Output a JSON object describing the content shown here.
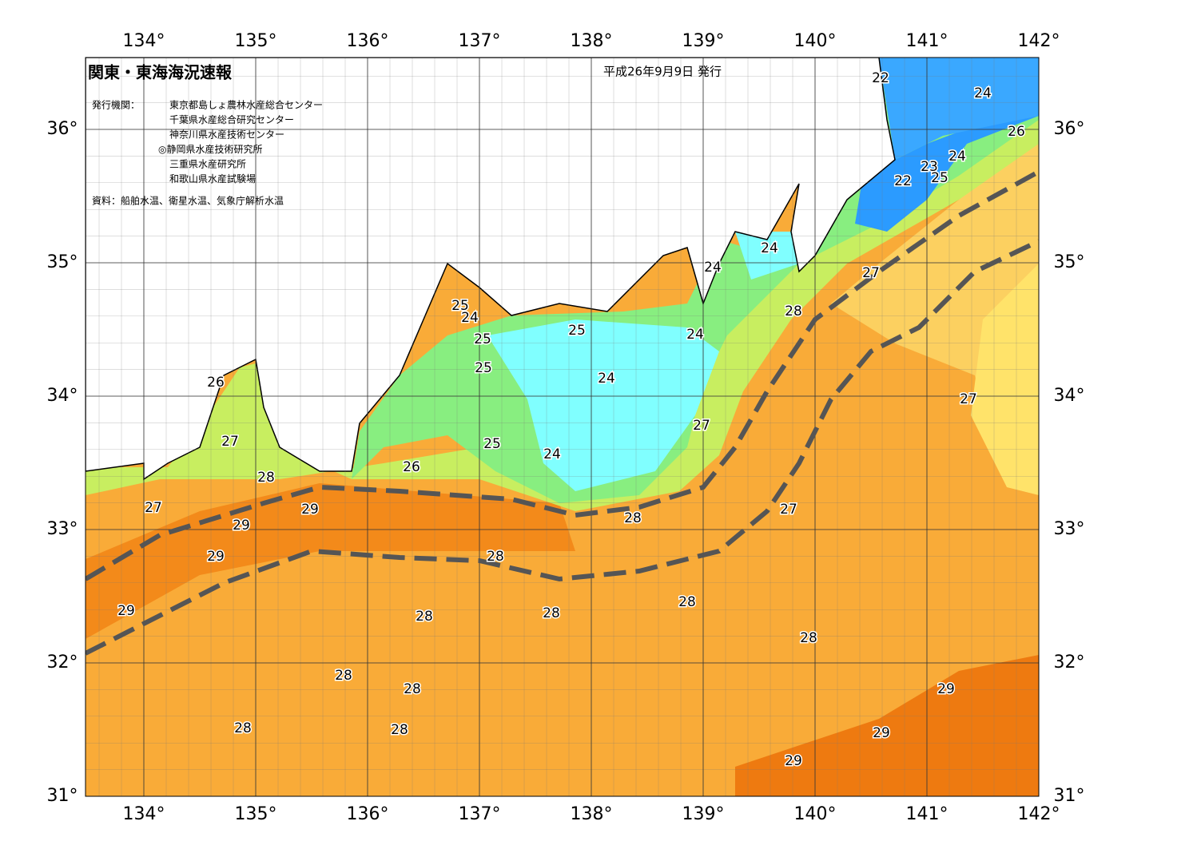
{
  "header": {
    "title": "関東・東海海況速報",
    "date": "平成26年9月9日 発行",
    "issuer_label": "発行機関：",
    "issuers": [
      "東京都島しょ農林水産総合センター",
      "千葉県水産総合研究センター",
      "神奈川県水産技術センター",
      "◎静岡県水産技術研究所",
      "三重県水産研究所",
      "和歌山県水産試験場"
    ],
    "source": "資料：船舶水温、衛星水温、気象庁解析水温"
  },
  "longitude_labels": [
    {
      "value": 134,
      "label": "134°"
    },
    {
      "value": 135,
      "label": "135°"
    },
    {
      "value": 136,
      "label": "136°"
    },
    {
      "value": 137,
      "label": "137°"
    },
    {
      "value": 138,
      "label": "138°"
    },
    {
      "value": 139,
      "label": "139°"
    },
    {
      "value": 140,
      "label": "140°"
    },
    {
      "value": 141,
      "label": "141°"
    },
    {
      "value": 142,
      "label": "142°"
    }
  ],
  "latitude_labels": [
    {
      "value": 31,
      "label": "31°"
    },
    {
      "value": 32,
      "label": "32°"
    },
    {
      "value": 33,
      "label": "33°"
    },
    {
      "value": 34,
      "label": "34°"
    },
    {
      "value": 35,
      "label": "35°"
    },
    {
      "value": 36,
      "label": "36°"
    }
  ],
  "contour_labels": [
    22,
    24,
    26,
    24,
    23,
    25,
    22,
    24,
    24,
    27,
    28,
    25,
    24,
    25,
    25,
    24,
    25,
    24,
    26,
    27,
    27,
    27,
    25,
    24,
    26,
    28,
    27,
    29,
    27,
    28,
    29,
    29,
    28,
    28,
    29,
    28,
    28,
    28,
    29,
    28,
    28,
    28,
    28,
    29,
    29
  ]
}
